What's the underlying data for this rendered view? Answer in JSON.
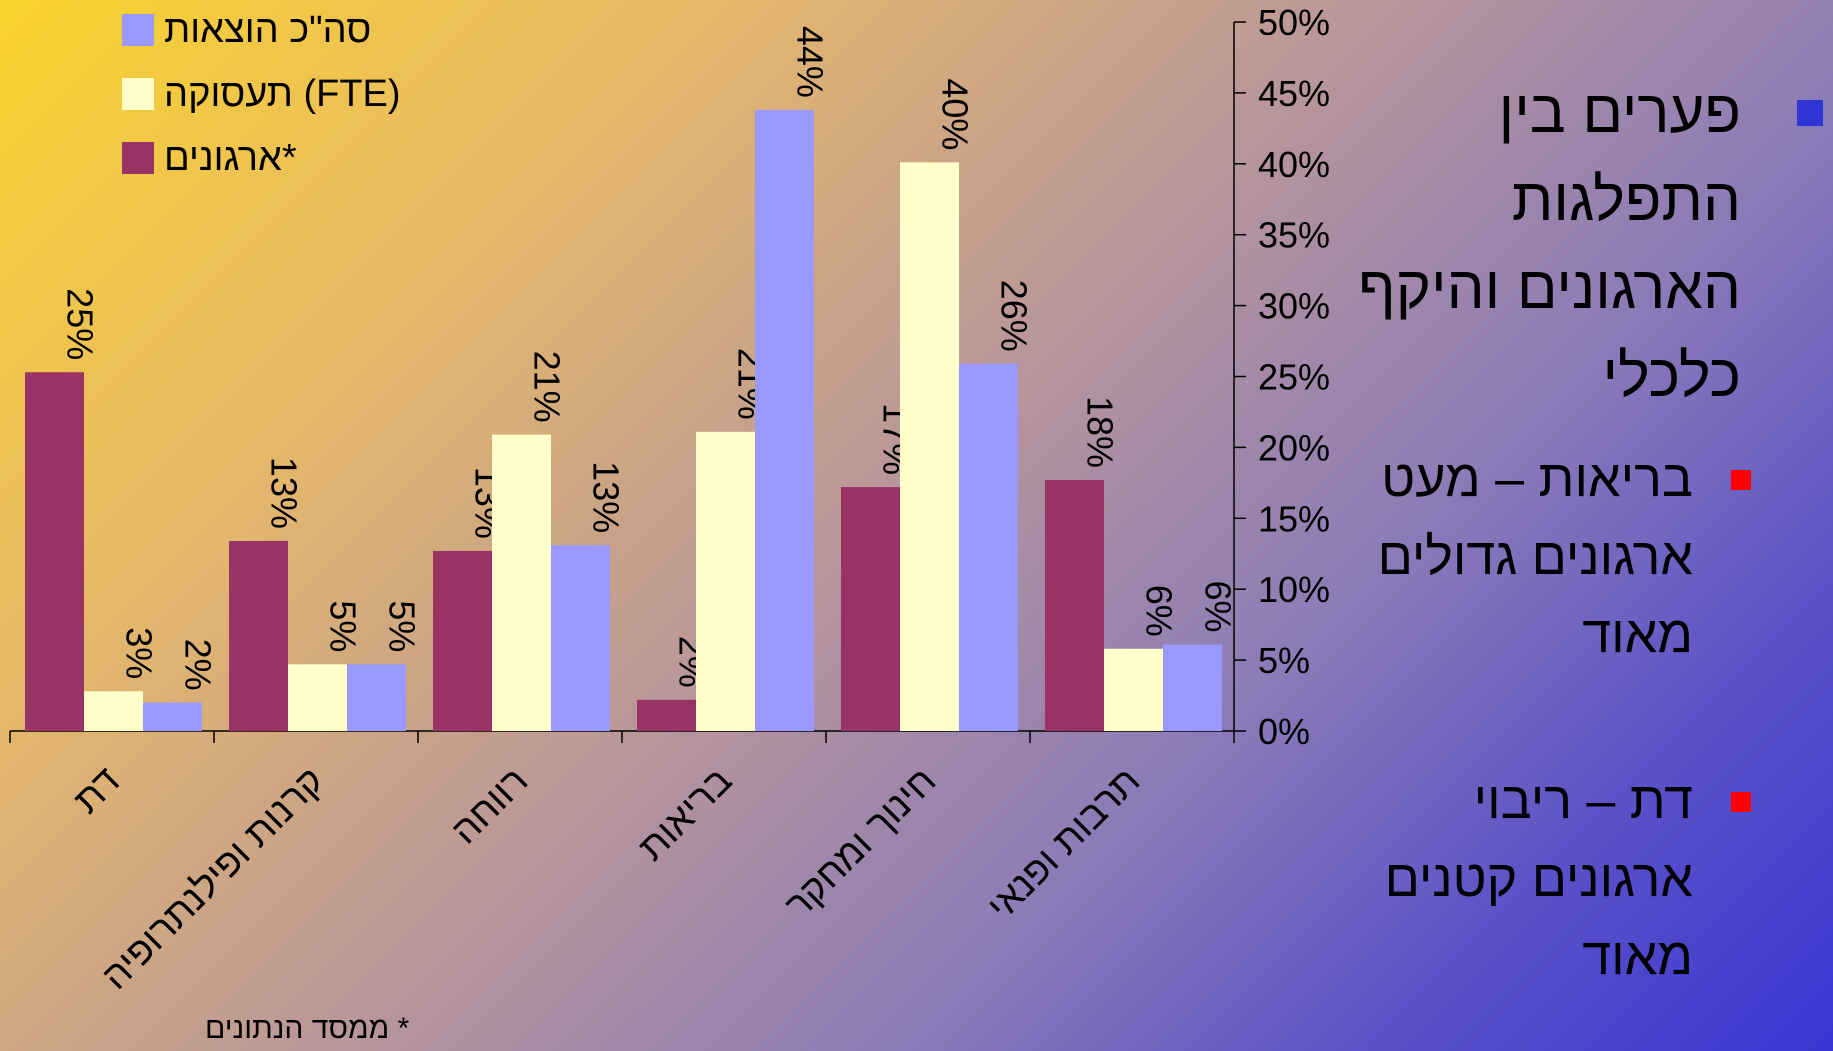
{
  "chart_data": {
    "type": "bar",
    "categories": [
      "דת",
      "קרנות ופילנתרופיה",
      "רווחה",
      "בריאות",
      "חינוך ומחקר",
      "תרבות ופנאי"
    ],
    "series": [
      {
        "name": "ארגונים*",
        "color": "#993366",
        "values": [
          25,
          13,
          13,
          2,
          17,
          18
        ]
      },
      {
        "name": "תעסוקה (FTE)",
        "color": "#ffffcc",
        "values": [
          3,
          5,
          21,
          21,
          40,
          6
        ]
      },
      {
        "name": "סה\"כ הוצאות",
        "color": "#9999ff",
        "values": [
          2,
          5,
          13,
          44,
          26,
          6
        ]
      }
    ],
    "true_values": [
      [
        25.3,
        13.4,
        12.7,
        2.2,
        17.2,
        17.7
      ],
      [
        2.8,
        4.7,
        20.9,
        21.1,
        40.1,
        5.8
      ],
      [
        2.0,
        4.7,
        13.1,
        43.8,
        25.9,
        6.1
      ]
    ],
    "data_labels": [
      [
        "25%",
        "13%",
        "13%",
        "2%",
        "17%",
        "18%"
      ],
      [
        "3%",
        "5%",
        "21%",
        "21%",
        "40%",
        "6%"
      ],
      [
        "2%",
        "5%",
        "13%",
        "44%",
        "26%",
        "6%"
      ]
    ],
    "y_ticks": [
      "0%",
      "5%",
      "10%",
      "15%",
      "20%",
      "25%",
      "30%",
      "35%",
      "40%",
      "45%",
      "50%"
    ],
    "ylim": [
      0,
      50
    ],
    "title": "",
    "xlabel": "",
    "ylabel": "",
    "legend": "top-left",
    "grid": false,
    "y_axis_side": "right"
  },
  "bullets": {
    "main": "פערים בין התפלגות הארגונים והיקף כלכלי",
    "sub": [
      "בריאות – מעט ארגונים גדולים מאוד",
      "דת – ריבוי ארגונים קטנים מאוד"
    ]
  },
  "footnote": "* ממסד הנתונים"
}
